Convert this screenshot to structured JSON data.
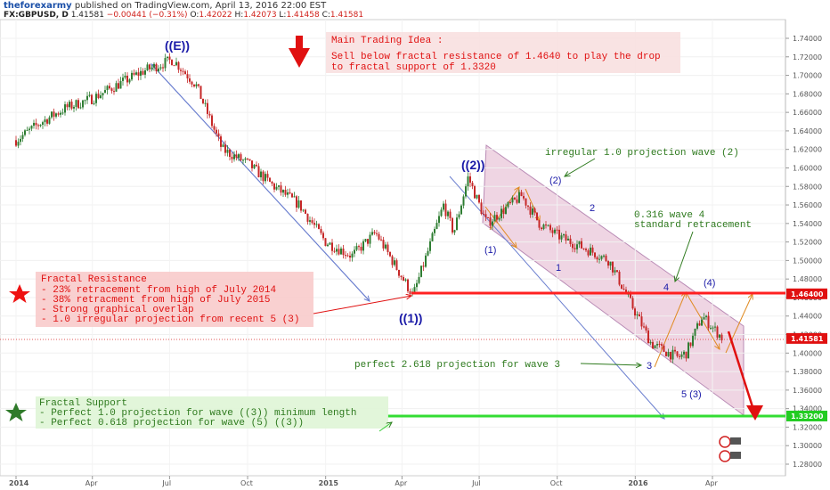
{
  "header": {
    "brand": "theforexarmy",
    "published": "published on TradingView.com, April 13, 2016 22:00 EST",
    "symbol": "FX:GBPUSD, D",
    "last": "1.41581",
    "change": "−0.00441 (−0.31%)",
    "open_label": "O:",
    "open": "1.42022",
    "high_label": "H:",
    "high": "1.42073",
    "low_label": "L:",
    "low": "1.41458",
    "close_label": "C:",
    "close": "1.41581"
  },
  "colors": {
    "up_candle": "#2e7d32",
    "down_candle": "#c62828",
    "channel_fill": "#e9c7d9",
    "resistance_line": "#ff2020",
    "support_line": "#33dd33",
    "wave_label": "#1a1aa8",
    "note_red": "#e01010",
    "note_green": "#2e7a1e"
  },
  "chart_data": {
    "type": "candlestick",
    "symbol": "FX:GBPUSD",
    "timeframe": "D",
    "ylim": [
      1.27,
      1.75
    ],
    "y_ticks": [
      "1.74000",
      "1.72000",
      "1.70000",
      "1.68000",
      "1.66000",
      "1.64000",
      "1.62000",
      "1.60000",
      "1.58000",
      "1.56000",
      "1.54000",
      "1.52000",
      "1.50000",
      "1.48000",
      "1.46000",
      "1.44000",
      "1.42000",
      "1.40000",
      "1.38000",
      "1.36000",
      "1.34000",
      "1.32000",
      "1.30000",
      "1.28000"
    ],
    "x_ticks": [
      "2014",
      "Apr",
      "Jul",
      "Oct",
      "2015",
      "Apr",
      "Jul",
      "Oct",
      "2016",
      "Apr"
    ],
    "price_tags": [
      {
        "value": 1.464,
        "label": "1.46400",
        "color": "#e01010"
      },
      {
        "value": 1.41581,
        "label": "1.41581",
        "color": "#e01010"
      },
      {
        "value": 1.332,
        "label": "1.33200",
        "color": "#22cc22"
      }
    ],
    "price_path": [
      {
        "date": "2014-01-01",
        "close": 1.63
      },
      {
        "date": "2014-02-01",
        "close": 1.65
      },
      {
        "date": "2014-03-01",
        "close": 1.665
      },
      {
        "date": "2014-04-01",
        "close": 1.675
      },
      {
        "date": "2014-05-01",
        "close": 1.69
      },
      {
        "date": "2014-06-01",
        "close": 1.705
      },
      {
        "date": "2014-07-05",
        "close": 1.717
      },
      {
        "date": "2014-08-01",
        "close": 1.69
      },
      {
        "date": "2014-09-01",
        "close": 1.62
      },
      {
        "date": "2014-10-01",
        "close": 1.605
      },
      {
        "date": "2014-11-01",
        "close": 1.58
      },
      {
        "date": "2014-12-01",
        "close": 1.56
      },
      {
        "date": "2015-01-01",
        "close": 1.52
      },
      {
        "date": "2015-02-01",
        "close": 1.505
      },
      {
        "date": "2015-03-01",
        "close": 1.53
      },
      {
        "date": "2015-04-14",
        "close": 1.462
      },
      {
        "date": "2015-05-20",
        "close": 1.56
      },
      {
        "date": "2015-06-01",
        "close": 1.53
      },
      {
        "date": "2015-06-18",
        "close": 1.59
      },
      {
        "date": "2015-07-10",
        "close": 1.54
      },
      {
        "date": "2015-08-20",
        "close": 1.57
      },
      {
        "date": "2015-09-10",
        "close": 1.54
      },
      {
        "date": "2015-10-05",
        "close": 1.525
      },
      {
        "date": "2015-11-10",
        "close": 1.51
      },
      {
        "date": "2015-12-01",
        "close": 1.5
      },
      {
        "date": "2016-01-20",
        "close": 1.41
      },
      {
        "date": "2016-02-20",
        "close": 1.395
      },
      {
        "date": "2016-03-01",
        "close": 1.4
      },
      {
        "date": "2016-03-20",
        "close": 1.44
      },
      {
        "date": "2016-04-13",
        "close": 1.41581
      }
    ],
    "lines": [
      {
        "name": "Fractal Resistance",
        "value": 1.464
      },
      {
        "name": "Fractal Support",
        "value": 1.332
      }
    ],
    "wave_labels": [
      "((E))",
      "((1))",
      "((2))",
      "(1)",
      "(2)",
      "1",
      "2",
      "3",
      "4",
      "(4)",
      "5 (3)"
    ],
    "annotations": {
      "main_idea_title": "Main Trading Idea :",
      "main_idea_line1": "Sell below fractal resistance of 1.4640 to play the drop",
      "main_idea_line2": "to fractal support of 1.3320",
      "resistance_title": "Fractal Resistance",
      "resistance_items": [
        "- 23% retracement from high of July 2014",
        "- 38% retracment from high of July 2015",
        "- Strong graphical overlap",
        "- 1.0 irregular projection from recent 5 (3)"
      ],
      "support_title": "Fractal Support",
      "support_items": [
        "- Perfect 1.0 projection for wave ((3)) minimum length",
        "- Perfect 0.618 projection for wave (5) ((3))"
      ],
      "note_projection2": "irregular 1.0 projection wave (2)",
      "note_wave4_line1": "0.316 wave 4",
      "note_wave4_line2": "standard retracement",
      "note_wave3": "perfect 2.618 projection for wave 3"
    }
  }
}
